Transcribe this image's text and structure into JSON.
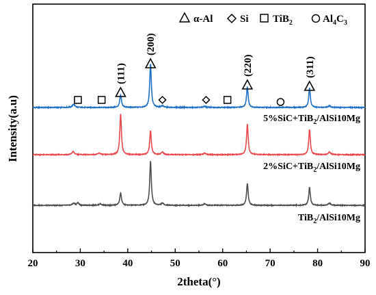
{
  "chart_data": {
    "type": "line",
    "xlabel": "2theta(°)",
    "ylabel": "Intensity(a.u)",
    "xlim": [
      20,
      90
    ],
    "x_ticks": [
      "20",
      "30",
      "40",
      "50",
      "60",
      "70",
      "80",
      "90"
    ],
    "grid": false,
    "legend": {
      "placement": "top-right",
      "entries": [
        {
          "marker": "triangle",
          "label": "α-Al"
        },
        {
          "marker": "diamond",
          "label": "Si"
        },
        {
          "marker": "square",
          "label": "TiB",
          "sub": "2"
        },
        {
          "marker": "circle",
          "label": "Al",
          "sub": "4",
          "label2": "C",
          "sub2": "3"
        }
      ]
    },
    "series": [
      {
        "name": "5%SiC+TiB2/AlSi10Mg",
        "label_parts": [
          "5%SiC+TiB",
          "2",
          "/AlSi10Mg"
        ],
        "color": "#1f6fc5",
        "baseline": 0.0,
        "peaks": [
          {
            "x": 28.6,
            "h": 0.6,
            "w": 0.3
          },
          {
            "x": 38.5,
            "h": 2.2,
            "w": 0.22
          },
          {
            "x": 44.8,
            "h": 8.0,
            "w": 0.2
          },
          {
            "x": 47.3,
            "h": 0.3,
            "w": 0.3
          },
          {
            "x": 56.2,
            "h": 0.2,
            "w": 0.3
          },
          {
            "x": 65.2,
            "h": 3.8,
            "w": 0.2
          },
          {
            "x": 78.3,
            "h": 3.6,
            "w": 0.2
          },
          {
            "x": 82.5,
            "h": 0.3,
            "w": 0.3
          }
        ]
      },
      {
        "name": "2%SiC+TiB2/AlSi10Mg",
        "label_parts": [
          "2%SiC+TiB",
          "2",
          "/AlSi10Mg"
        ],
        "color": "#e8474b",
        "baseline": 0.0,
        "peaks": [
          {
            "x": 28.5,
            "h": 0.6,
            "w": 0.3
          },
          {
            "x": 34.0,
            "h": 0.3,
            "w": 0.3
          },
          {
            "x": 38.5,
            "h": 8.0,
            "w": 0.2
          },
          {
            "x": 44.8,
            "h": 4.8,
            "w": 0.2
          },
          {
            "x": 47.3,
            "h": 0.5,
            "w": 0.3
          },
          {
            "x": 56.2,
            "h": 0.3,
            "w": 0.3
          },
          {
            "x": 65.2,
            "h": 6.0,
            "w": 0.2
          },
          {
            "x": 78.3,
            "h": 5.0,
            "w": 0.2
          },
          {
            "x": 82.5,
            "h": 0.5,
            "w": 0.3
          }
        ]
      },
      {
        "name": "TiB2/AlSi10Mg",
        "label_parts": [
          "TiB",
          "2",
          "/AlSi10Mg"
        ],
        "color": "#4d4d4d",
        "baseline": 0.0,
        "peaks": [
          {
            "x": 28.6,
            "h": 0.4,
            "w": 0.3
          },
          {
            "x": 29.5,
            "h": 0.5,
            "w": 0.25
          },
          {
            "x": 34.2,
            "h": 0.3,
            "w": 0.3
          },
          {
            "x": 38.5,
            "h": 2.4,
            "w": 0.22
          },
          {
            "x": 44.8,
            "h": 8.8,
            "w": 0.2
          },
          {
            "x": 47.3,
            "h": 0.4,
            "w": 0.3
          },
          {
            "x": 56.2,
            "h": 0.3,
            "w": 0.3
          },
          {
            "x": 65.2,
            "h": 4.3,
            "w": 0.2
          },
          {
            "x": 78.3,
            "h": 3.6,
            "w": 0.2
          },
          {
            "x": 82.5,
            "h": 0.4,
            "w": 0.3
          }
        ]
      }
    ],
    "annotations": {
      "planes": [
        {
          "x": 38.5,
          "label": "(111)"
        },
        {
          "x": 44.8,
          "label": "(200)"
        },
        {
          "x": 65.2,
          "label": "(220)"
        },
        {
          "x": 78.3,
          "label": "(311)"
        }
      ],
      "triangles": [
        38.5,
        44.8,
        65.2,
        78.3
      ],
      "diamonds": [
        47.3,
        56.5
      ],
      "squares": [
        29.5,
        34.5,
        61.0
      ],
      "circles": [
        72.2
      ]
    }
  }
}
